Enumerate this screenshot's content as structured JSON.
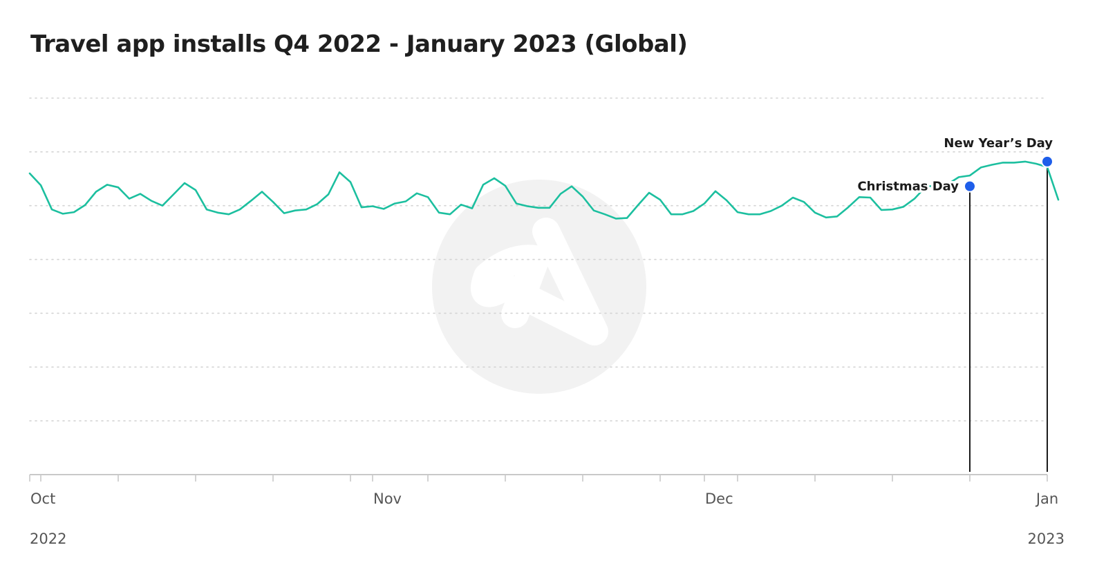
{
  "title": "Travel app installs Q4 2022 - January 2023 (Global)",
  "colors": {
    "line": "#1cbf9f",
    "marker": "#1e5eea",
    "grid": "#d3d3d3",
    "axis": "#c8c8c8",
    "text": "#555555",
    "watermark": "#f2f2f2"
  },
  "watermark_icon": "company-logo-watermark",
  "chart_data": {
    "type": "line",
    "title": "Travel app installs Q4 2022 - January 2023 (Global)",
    "xlabel": "",
    "ylabel": "",
    "grid": true,
    "y_axis_labels_shown": false,
    "xlim": [
      "2022-10-01",
      "2023-01-01"
    ],
    "ylim": [
      0,
      7
    ],
    "x_ticks": [
      "Oct",
      "Nov",
      "Dec",
      "Jan"
    ],
    "x_ticks_dates": [
      "2022-10-01",
      "2022-11-01",
      "2022-12-01",
      "2023-01-01"
    ],
    "year_labels": [
      "2022",
      "2023"
    ],
    "x": [
      "2022-10-01",
      "2022-10-02",
      "2022-10-03",
      "2022-10-04",
      "2022-10-05",
      "2022-10-06",
      "2022-10-07",
      "2022-10-08",
      "2022-10-09",
      "2022-10-10",
      "2022-10-11",
      "2022-10-12",
      "2022-10-13",
      "2022-10-14",
      "2022-10-15",
      "2022-10-16",
      "2022-10-17",
      "2022-10-18",
      "2022-10-19",
      "2022-10-20",
      "2022-10-21",
      "2022-10-22",
      "2022-10-23",
      "2022-10-24",
      "2022-10-25",
      "2022-10-26",
      "2022-10-27",
      "2022-10-28",
      "2022-10-29",
      "2022-10-30",
      "2022-10-31",
      "2022-11-01",
      "2022-11-02",
      "2022-11-03",
      "2022-11-04",
      "2022-11-05",
      "2022-11-06",
      "2022-11-07",
      "2022-11-08",
      "2022-11-09",
      "2022-11-10",
      "2022-11-11",
      "2022-11-12",
      "2022-11-13",
      "2022-11-14",
      "2022-11-15",
      "2022-11-16",
      "2022-11-17",
      "2022-11-18",
      "2022-11-19",
      "2022-11-20",
      "2022-11-21",
      "2022-11-22",
      "2022-11-23",
      "2022-11-24",
      "2022-11-25",
      "2022-11-26",
      "2022-11-27",
      "2022-11-28",
      "2022-11-29",
      "2022-11-30",
      "2022-12-01",
      "2022-12-02",
      "2022-12-03",
      "2022-12-04",
      "2022-12-05",
      "2022-12-06",
      "2022-12-07",
      "2022-12-08",
      "2022-12-09",
      "2022-12-10",
      "2022-12-11",
      "2022-12-12",
      "2022-12-13",
      "2022-12-14",
      "2022-12-15",
      "2022-12-16",
      "2022-12-17",
      "2022-12-18",
      "2022-12-19",
      "2022-12-20",
      "2022-12-21",
      "2022-12-22",
      "2022-12-23",
      "2022-12-24",
      "2022-12-25",
      "2022-12-26",
      "2022-12-27",
      "2022-12-28",
      "2022-12-29",
      "2022-12-30",
      "2022-12-31",
      "2023-01-01",
      "2023-01-02"
    ],
    "series": [
      {
        "values": [
          5.6,
          5.38,
          4.93,
          4.85,
          4.88,
          5.01,
          5.26,
          5.39,
          5.34,
          5.13,
          5.22,
          5.09,
          5.0,
          5.21,
          5.42,
          5.29,
          4.93,
          4.87,
          4.84,
          4.93,
          5.09,
          5.26,
          5.07,
          4.86,
          4.91,
          4.93,
          5.03,
          5.21,
          5.62,
          5.44,
          4.97,
          4.99,
          4.94,
          5.04,
          5.08,
          5.23,
          5.16,
          4.87,
          4.84,
          5.02,
          4.95,
          5.39,
          5.51,
          5.37,
          5.04,
          4.99,
          4.96,
          4.96,
          5.22,
          5.36,
          5.17,
          4.91,
          4.84,
          4.76,
          4.77,
          5.01,
          5.24,
          5.11,
          4.84,
          4.84,
          4.9,
          5.04,
          5.27,
          5.1,
          4.88,
          4.84,
          4.84,
          4.9,
          5.0,
          5.15,
          5.07,
          4.87,
          4.78,
          4.8,
          4.97,
          5.16,
          5.15,
          4.92,
          4.93,
          4.98,
          5.13,
          5.35,
          5.38,
          5.4,
          5.53,
          5.56,
          5.71,
          5.76,
          5.8,
          5.8,
          5.82,
          5.78,
          5.72,
          5.11
        ]
      }
    ],
    "annotations": [
      {
        "label": "Christmas Day",
        "x": "2022-12-25",
        "y": 5.36
      },
      {
        "label": "New Year’s Day",
        "x": "2023-01-01",
        "y": 5.82
      }
    ]
  }
}
